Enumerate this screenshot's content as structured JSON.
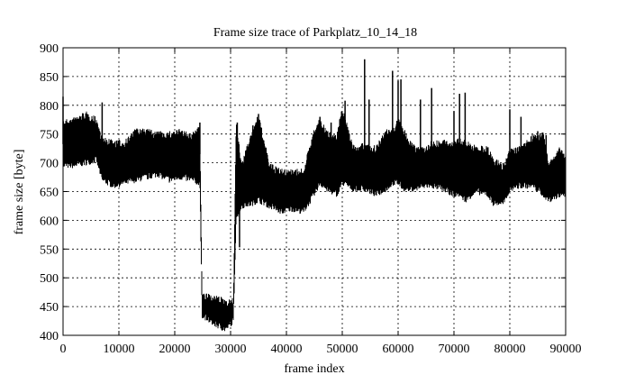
{
  "chart_data": {
    "type": "line",
    "title": "Frame size trace of Parkplatz_10_14_18",
    "xlabel": "frame index",
    "ylabel": "frame size [byte]",
    "xlim": [
      0,
      90000
    ],
    "ylim": [
      400,
      900
    ],
    "xticks": [
      0,
      10000,
      20000,
      30000,
      40000,
      50000,
      60000,
      70000,
      80000,
      90000
    ],
    "yticks": [
      400,
      450,
      500,
      550,
      600,
      650,
      700,
      750,
      800,
      850,
      900
    ],
    "grid": true,
    "line_color": "#000000",
    "series": [
      {
        "envelope_note_x_low_high": "approximate per-segment min/max of frame size",
        "envelope": [
          [
            0,
            690,
            775
          ],
          [
            2000,
            690,
            780
          ],
          [
            4000,
            695,
            790
          ],
          [
            6000,
            700,
            780
          ],
          [
            7000,
            665,
            745
          ],
          [
            9000,
            655,
            740
          ],
          [
            11000,
            660,
            740
          ],
          [
            13000,
            665,
            760
          ],
          [
            15000,
            670,
            760
          ],
          [
            17000,
            675,
            755
          ],
          [
            19000,
            665,
            755
          ],
          [
            21000,
            670,
            760
          ],
          [
            23000,
            665,
            750
          ],
          [
            24500,
            660,
            770
          ],
          [
            24900,
            430,
            475
          ],
          [
            27000,
            415,
            470
          ],
          [
            29000,
            405,
            465
          ],
          [
            30500,
            420,
            465
          ],
          [
            31000,
            600,
            770
          ],
          [
            32000,
            620,
            700
          ],
          [
            34000,
            625,
            765
          ],
          [
            35000,
            630,
            785
          ],
          [
            37000,
            620,
            700
          ],
          [
            39000,
            610,
            690
          ],
          [
            41000,
            615,
            690
          ],
          [
            43000,
            610,
            690
          ],
          [
            45000,
            640,
            760
          ],
          [
            46000,
            660,
            780
          ],
          [
            47000,
            650,
            760
          ],
          [
            49000,
            640,
            750
          ],
          [
            50000,
            660,
            800
          ],
          [
            52000,
            650,
            730
          ],
          [
            54000,
            650,
            735
          ],
          [
            56000,
            640,
            730
          ],
          [
            58000,
            650,
            760
          ],
          [
            59000,
            660,
            760
          ],
          [
            60000,
            660,
            780
          ],
          [
            61000,
            650,
            760
          ],
          [
            63000,
            650,
            730
          ],
          [
            65000,
            655,
            730
          ],
          [
            66000,
            655,
            740
          ],
          [
            68000,
            650,
            740
          ],
          [
            70000,
            640,
            740
          ],
          [
            71000,
            640,
            745
          ],
          [
            72000,
            630,
            740
          ],
          [
            74000,
            645,
            730
          ],
          [
            76000,
            640,
            730
          ],
          [
            77000,
            625,
            710
          ],
          [
            79000,
            625,
            700
          ],
          [
            80000,
            650,
            725
          ],
          [
            82000,
            655,
            730
          ],
          [
            84000,
            655,
            750
          ],
          [
            86000,
            640,
            755
          ],
          [
            87000,
            630,
            700
          ],
          [
            89000,
            640,
            730
          ],
          [
            90000,
            640,
            715
          ]
        ],
        "peaks": [
          [
            0,
            815
          ],
          [
            7000,
            805
          ],
          [
            24500,
            770
          ],
          [
            31200,
            770
          ],
          [
            31600,
            553
          ],
          [
            34000,
            765
          ],
          [
            35000,
            785
          ],
          [
            46000,
            780
          ],
          [
            48000,
            770
          ],
          [
            50500,
            808
          ],
          [
            54000,
            880
          ],
          [
            54800,
            810
          ],
          [
            59000,
            860
          ],
          [
            60000,
            843
          ],
          [
            60500,
            845
          ],
          [
            64000,
            810
          ],
          [
            66000,
            830
          ],
          [
            70000,
            790
          ],
          [
            71000,
            820
          ],
          [
            72000,
            822
          ],
          [
            80000,
            793
          ],
          [
            82000,
            780
          ],
          [
            85000,
            755
          ],
          [
            86500,
            748
          ]
        ]
      }
    ]
  }
}
